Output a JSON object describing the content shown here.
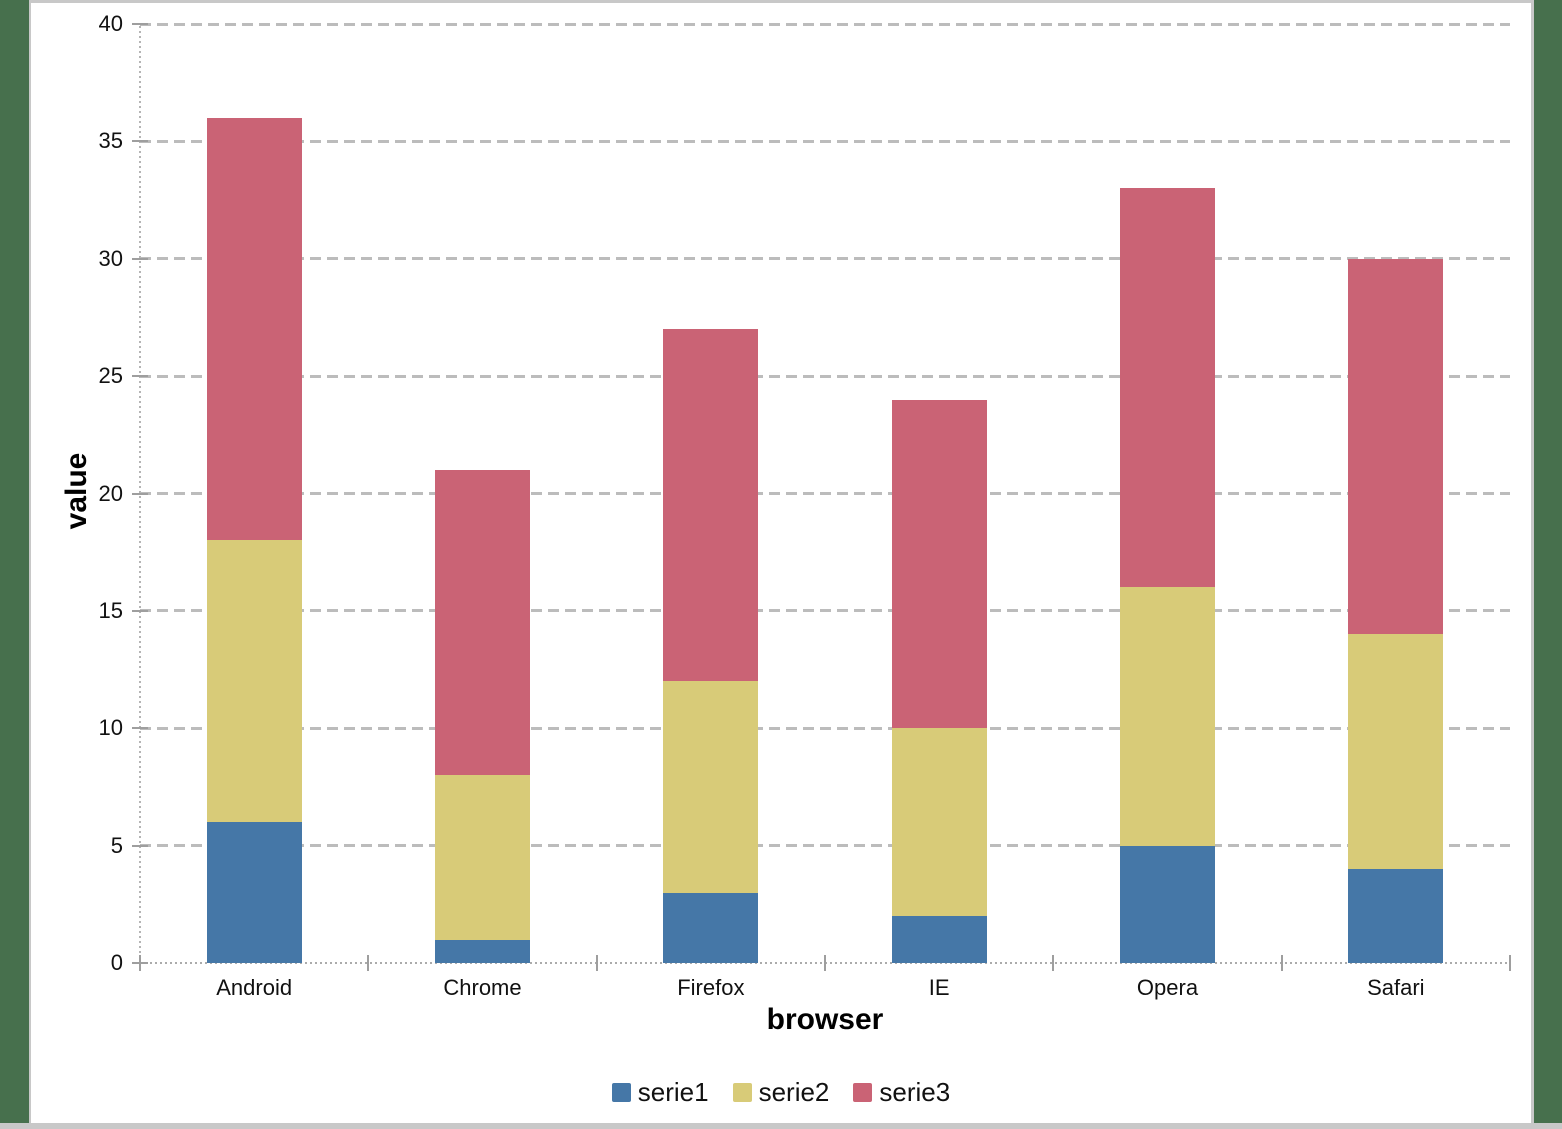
{
  "window": {
    "margin_color": "#47704d",
    "trim_color": "#c8c8c8",
    "panel_background": "#ffffff"
  },
  "chart_data": {
    "type": "bar",
    "stacked": true,
    "title": "",
    "categories": [
      "Android",
      "Chrome",
      "Firefox",
      "IE",
      "Opera",
      "Safari"
    ],
    "series": [
      {
        "name": "serie1",
        "color": "#4577a7",
        "values": [
          6,
          1,
          3,
          2,
          5,
          4
        ]
      },
      {
        "name": "serie2",
        "color": "#d8cb78",
        "values": [
          12,
          7,
          9,
          8,
          11,
          10
        ]
      },
      {
        "name": "serie3",
        "color": "#ca6375",
        "values": [
          18,
          13,
          15,
          14,
          17,
          16
        ]
      }
    ],
    "stack_totals": [
      36,
      21,
      27,
      24,
      33,
      30
    ],
    "xlabel": "browser",
    "ylabel": "value",
    "ylim": [
      0,
      40
    ],
    "ytick_step": 5,
    "yticks": [
      0,
      5,
      10,
      15,
      20,
      25,
      30,
      35,
      40
    ],
    "grid": "horizontal-dashed",
    "grid_color": "#bcbcbc",
    "tick_color": "#9e9e9e",
    "text_color": "#111111",
    "legend_position": "bottom",
    "legend": [
      "serie1",
      "serie2",
      "serie3"
    ]
  }
}
